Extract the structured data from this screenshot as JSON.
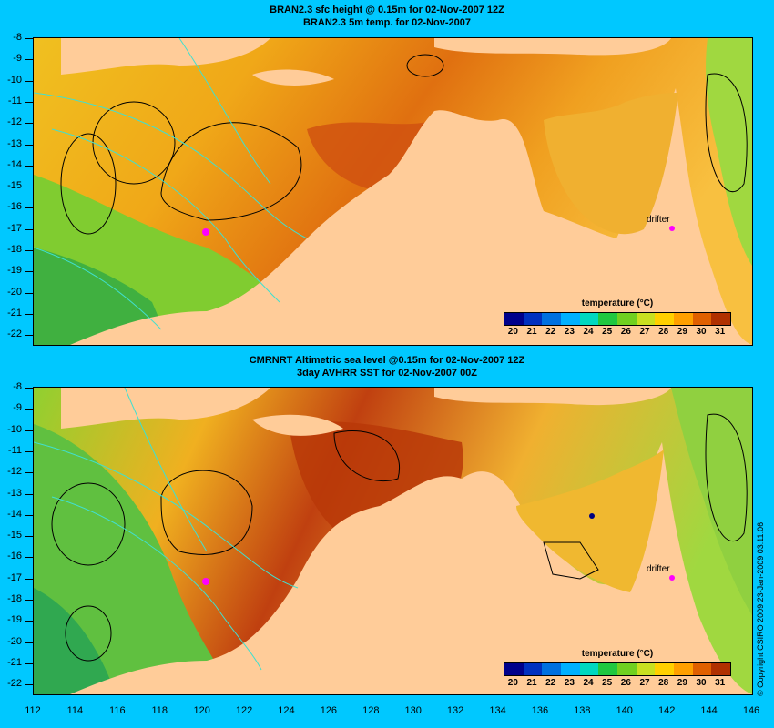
{
  "top_panel": {
    "title_line1": "BRAN2.3 sfc height @ 0.15m for 02-Nov-2007 12Z",
    "title_line2": "BRAN2.3 5m temp. for 02-Nov-2007",
    "drifter_label": "drifter"
  },
  "bottom_panel": {
    "title_line1": "CMRNRT Altimetric sea level  @0.15m  for 02-Nov-2007 12Z",
    "title_line2": "3day AVHRR SST for 02-Nov-2007 00Z",
    "drifter_label": "drifter"
  },
  "legend": {
    "title": "temperature (°C)",
    "ticks": [
      "20",
      "21",
      "22",
      "23",
      "24",
      "25",
      "26",
      "27",
      "28",
      "29",
      "30",
      "31"
    ],
    "colors": [
      "#00008b",
      "#0030c0",
      "#0070e0",
      "#00b0ff",
      "#00d8c0",
      "#20c840",
      "#70d020",
      "#c8e020",
      "#ffd000",
      "#ffa000",
      "#e06000",
      "#b03000"
    ]
  },
  "y_axis": [
    "-8",
    "-9",
    "-10",
    "-11",
    "-12",
    "-13",
    "-14",
    "-15",
    "-16",
    "-17",
    "-18",
    "-19",
    "-20",
    "-21",
    "-22"
  ],
  "x_axis": [
    "112",
    "114",
    "116",
    "118",
    "120",
    "122",
    "124",
    "126",
    "128",
    "130",
    "132",
    "134",
    "136",
    "138",
    "140",
    "142",
    "144",
    "146"
  ],
  "copyright": "© Copyright CSIRO 2009   23-Jan-2009 03:11:06",
  "colors": {
    "background": "#00c8ff",
    "land": "#ffcc99",
    "contour": "#000000",
    "isobath": "#40e0d0",
    "drifter": "#ff00ff"
  }
}
